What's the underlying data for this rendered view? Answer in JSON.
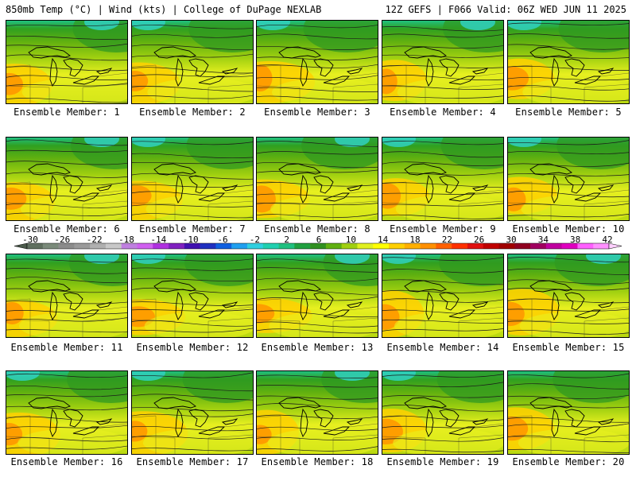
{
  "header": {
    "title_left": "850mb Temp (°C) | Wind (kts) | College of DuPage NEXLAB",
    "title_right": "12Z GEFS | F066 Valid: 06Z WED JUN 11 2025"
  },
  "panels": [
    {
      "label": "Ensemble Member: 1"
    },
    {
      "label": "Ensemble Member: 2"
    },
    {
      "label": "Ensemble Member: 3"
    },
    {
      "label": "Ensemble Member: 4"
    },
    {
      "label": "Ensemble Member: 5"
    },
    {
      "label": "Ensemble Member: 6"
    },
    {
      "label": "Ensemble Member: 7"
    },
    {
      "label": "Ensemble Member: 8"
    },
    {
      "label": "Ensemble Member: 9"
    },
    {
      "label": "Ensemble Member: 10"
    },
    {
      "label": "Ensemble Member: 11"
    },
    {
      "label": "Ensemble Member: 12"
    },
    {
      "label": "Ensemble Member: 13"
    },
    {
      "label": "Ensemble Member: 14"
    },
    {
      "label": "Ensemble Member: 15"
    },
    {
      "label": "Ensemble Member: 16"
    },
    {
      "label": "Ensemble Member: 17"
    },
    {
      "label": "Ensemble Member: 18"
    },
    {
      "label": "Ensemble Member: 19"
    },
    {
      "label": "Ensemble Member: 20"
    }
  ],
  "colorbar": {
    "tick_labels": [
      "-30",
      "-26",
      "-22",
      "-18",
      "-14",
      "-10",
      "-6",
      "-2",
      "2",
      "6",
      "10",
      "14",
      "18",
      "22",
      "26",
      "30",
      "34",
      "38",
      "42"
    ],
    "colors": [
      "#5f6f5f",
      "#7a8a7a",
      "#8c8c8c",
      "#9a9a9a",
      "#b0b0b0",
      "#c8c8c8",
      "#c080e0",
      "#d060f0",
      "#b030e0",
      "#8020c0",
      "#4010b0",
      "#2030c0",
      "#1060e0",
      "#20a0f0",
      "#30d0e0",
      "#20d0b0",
      "#20c080",
      "#20a040",
      "#309020",
      "#60b010",
      "#a0d010",
      "#e0f020",
      "#ffff00",
      "#ffd000",
      "#ffb000",
      "#ff9000",
      "#ff6000",
      "#ff3000",
      "#e01010",
      "#c00000",
      "#a00000",
      "#900020",
      "#a00060",
      "#c000a0",
      "#e000c0",
      "#ff60ff",
      "#ff90ff"
    ]
  }
}
